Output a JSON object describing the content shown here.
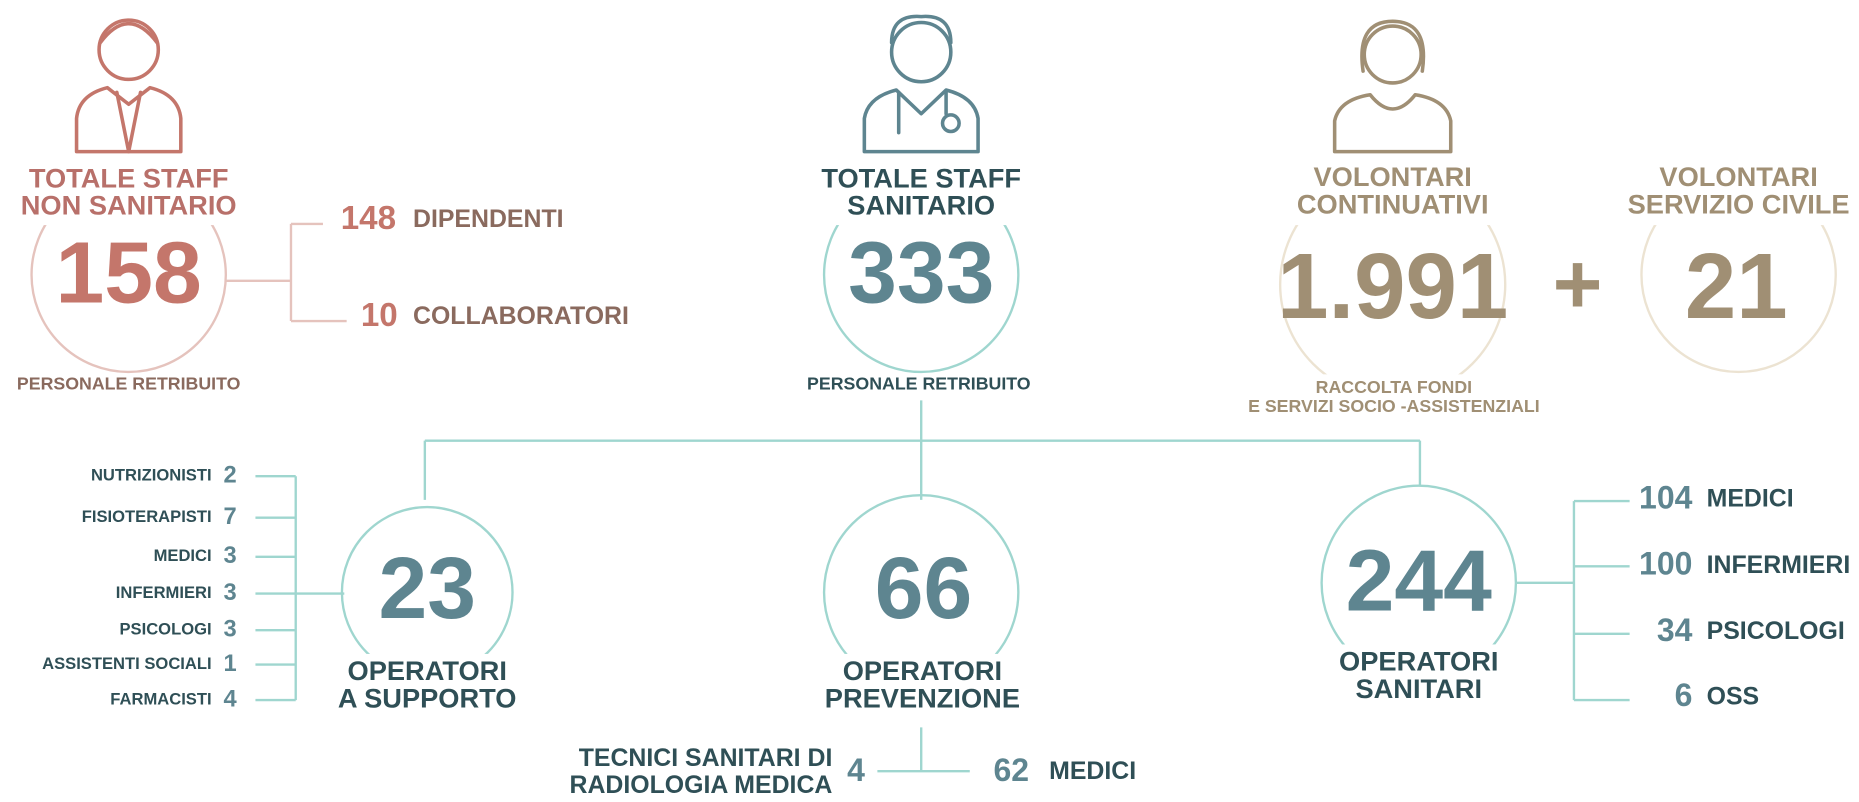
{
  "non_sanitario": {
    "title_lines": [
      "TOTALE STAFF",
      "NON SANITARIO"
    ],
    "total": 158,
    "caption": "PERSONALE RETRIBUITO",
    "breakdown": [
      {
        "value": 148,
        "label": "DIPENDENTI"
      },
      {
        "value": 10,
        "label": "COLLABORATORI"
      }
    ]
  },
  "sanitario": {
    "title_lines": [
      "TOTALE STAFF",
      "SANITARIO"
    ],
    "total": 333,
    "caption": "PERSONALE RETRIBUITO"
  },
  "volontari_continuativi": {
    "title_lines": [
      "VOLONTARI",
      "CONTINUATIVI"
    ],
    "total": "1.991",
    "caption_lines": [
      "RACCOLTA FONDI",
      "E SERVIZI SOCIO -ASSISTENZIALI"
    ]
  },
  "plus": "+",
  "volontari_servizio_civile": {
    "title_lines": [
      "VOLONTARI",
      "SERVIZIO CIVILE"
    ],
    "total": 21
  },
  "operatori": [
    {
      "total": 23,
      "label_lines": [
        "OPERATORI",
        "A SUPPORTO"
      ],
      "breakdown": [
        {
          "label": "NUTRIZIONISTI",
          "value": 2
        },
        {
          "label": "FISIOTERAPISTI",
          "value": 7
        },
        {
          "label": "MEDICI",
          "value": 3
        },
        {
          "label": "INFERMIERI",
          "value": 3
        },
        {
          "label": "PSICOLOGI",
          "value": 3
        },
        {
          "label": "ASSISTENTI SOCIALI",
          "value": 1
        },
        {
          "label": "FARMACISTI",
          "value": 4
        }
      ]
    },
    {
      "total": 66,
      "label_lines": [
        "OPERATORI",
        "PREVENZIONE"
      ],
      "breakdown": [
        {
          "label_lines": [
            "TECNICI SANITARI DI",
            "RADIOLOGIA MEDICA"
          ],
          "value": 4
        },
        {
          "value": 62,
          "label": "MEDICI"
        }
      ]
    },
    {
      "total": 244,
      "label_lines": [
        "OPERATORI",
        "SANITARI"
      ],
      "breakdown": [
        {
          "value": 104,
          "label": "MEDICI"
        },
        {
          "value": 100,
          "label": "INFERMIERI"
        },
        {
          "value": 34,
          "label": "PSICOLOGI"
        },
        {
          "value": 6,
          "label": "OSS"
        }
      ]
    }
  ]
}
